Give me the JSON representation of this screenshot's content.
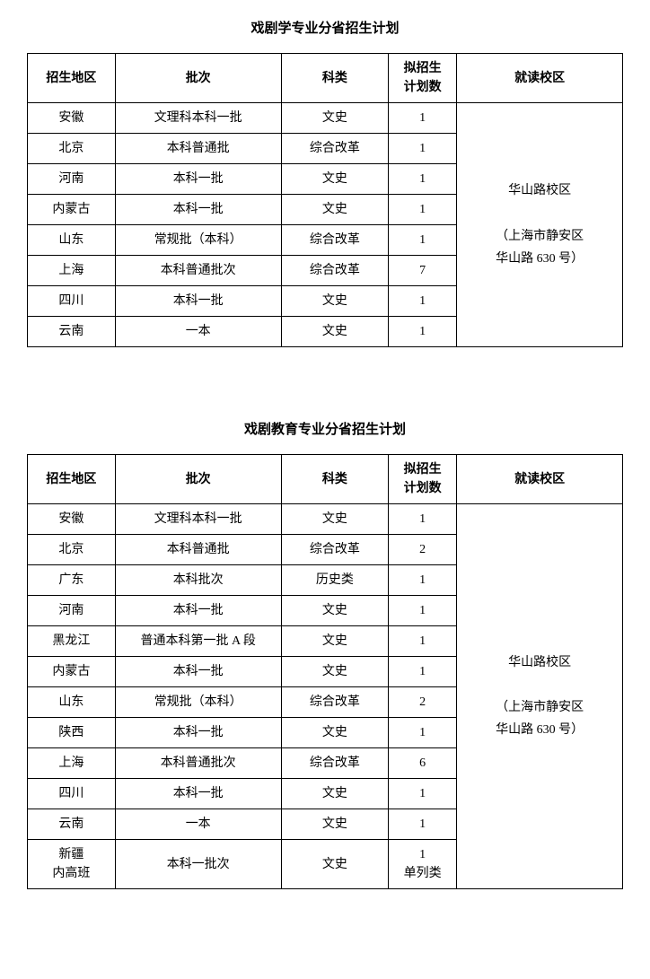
{
  "table1": {
    "title": "戏剧学专业分省招生计划",
    "headers": {
      "region": "招生地区",
      "batch": "批次",
      "category": "科类",
      "plan": "拟招生\n计划数",
      "campus": "就读校区"
    },
    "campus_text_line1": "华山路校区",
    "campus_text_line2": "（上海市静安区",
    "campus_text_line3": "华山路 630 号）",
    "rows": [
      {
        "region": "安徽",
        "batch": "文理科本科一批",
        "category": "文史",
        "plan": "1"
      },
      {
        "region": "北京",
        "batch": "本科普通批",
        "category": "综合改革",
        "plan": "1"
      },
      {
        "region": "河南",
        "batch": "本科一批",
        "category": "文史",
        "plan": "1"
      },
      {
        "region": "内蒙古",
        "batch": "本科一批",
        "category": "文史",
        "plan": "1"
      },
      {
        "region": "山东",
        "batch": "常规批（本科）",
        "category": "综合改革",
        "plan": "1"
      },
      {
        "region": "上海",
        "batch": "本科普通批次",
        "category": "综合改革",
        "plan": "7"
      },
      {
        "region": "四川",
        "batch": "本科一批",
        "category": "文史",
        "plan": "1"
      },
      {
        "region": "云南",
        "batch": "一本",
        "category": "文史",
        "plan": "1"
      }
    ]
  },
  "table2": {
    "title": "戏剧教育专业分省招生计划",
    "headers": {
      "region": "招生地区",
      "batch": "批次",
      "category": "科类",
      "plan": "拟招生\n计划数",
      "campus": "就读校区"
    },
    "campus_text_line1": "华山路校区",
    "campus_text_line2": "（上海市静安区",
    "campus_text_line3": "华山路 630 号）",
    "rows": [
      {
        "region": "安徽",
        "batch": "文理科本科一批",
        "category": "文史",
        "plan": "1"
      },
      {
        "region": "北京",
        "batch": "本科普通批",
        "category": "综合改革",
        "plan": "2"
      },
      {
        "region": "广东",
        "batch": "本科批次",
        "category": "历史类",
        "plan": "1"
      },
      {
        "region": "河南",
        "batch": "本科一批",
        "category": "文史",
        "plan": "1"
      },
      {
        "region": "黑龙江",
        "batch": "普通本科第一批 A 段",
        "category": "文史",
        "plan": "1"
      },
      {
        "region": "内蒙古",
        "batch": "本科一批",
        "category": "文史",
        "plan": "1"
      },
      {
        "region": "山东",
        "batch": "常规批（本科）",
        "category": "综合改革",
        "plan": "2"
      },
      {
        "region": "陕西",
        "batch": "本科一批",
        "category": "文史",
        "plan": "1"
      },
      {
        "region": "上海",
        "batch": "本科普通批次",
        "category": "综合改革",
        "plan": "6"
      },
      {
        "region": "四川",
        "batch": "本科一批",
        "category": "文史",
        "plan": "1"
      },
      {
        "region": "云南",
        "batch": "一本",
        "category": "文史",
        "plan": "1"
      },
      {
        "region": "新疆\n内高班",
        "batch": "本科一批次",
        "category": "文史",
        "plan": "1\n单列类"
      }
    ]
  }
}
